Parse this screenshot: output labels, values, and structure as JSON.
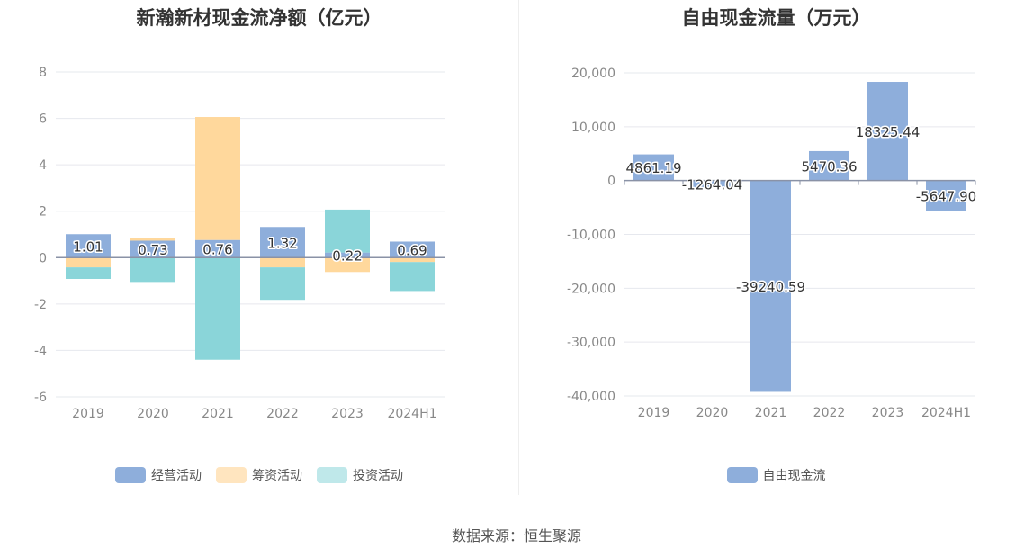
{
  "source_note": "数据来源：恒生聚源",
  "chart_data": [
    {
      "type": "bar",
      "stacked": true,
      "title": "新瀚新材现金流净额（亿元）",
      "categories": [
        "2019",
        "2020",
        "2021",
        "2022",
        "2023",
        "2024H1"
      ],
      "ylim": [
        -6,
        8
      ],
      "yticks": [
        -6,
        -4,
        -2,
        0,
        2,
        4,
        6,
        8
      ],
      "grid": true,
      "legend_position": "bottom",
      "series": [
        {
          "name": "经营活动",
          "color": "#8eaedb",
          "values": [
            1.01,
            0.73,
            0.76,
            1.32,
            0.22,
            0.69
          ],
          "labels": [
            "1.01",
            "0.73",
            "0.76",
            "1.32",
            "0.22",
            "0.69"
          ]
        },
        {
          "name": "筹资活动",
          "color": "#ffd89c",
          "values": [
            -0.42,
            0.12,
            5.3,
            -0.42,
            -0.62,
            -0.19
          ]
        },
        {
          "name": "投资活动",
          "color": "#8ad5d9",
          "values": [
            -0.5,
            -1.05,
            -4.4,
            -1.4,
            1.85,
            -1.25
          ]
        }
      ]
    },
    {
      "type": "bar",
      "title": "自由现金流量（万元）",
      "categories": [
        "2019",
        "2020",
        "2021",
        "2022",
        "2023",
        "2024H1"
      ],
      "ylim": [
        -40000,
        20000
      ],
      "yticks": [
        -40000,
        -30000,
        -20000,
        -10000,
        0,
        10000,
        20000
      ],
      "ytick_labels": [
        "-40,000",
        "-30,000",
        "-20,000",
        "-10,000",
        "0",
        "10,000",
        "20,000"
      ],
      "grid": true,
      "legend_position": "bottom",
      "series": [
        {
          "name": "自由现金流",
          "color": "#8eaedb",
          "values": [
            4861.19,
            -1264.04,
            -39240.59,
            5470.36,
            18325.44,
            -5647.9
          ],
          "labels": [
            "4861.19",
            "-1264.04",
            "-39240.59",
            "5470.36",
            "18325.44",
            "-5647.90"
          ]
        }
      ]
    }
  ]
}
